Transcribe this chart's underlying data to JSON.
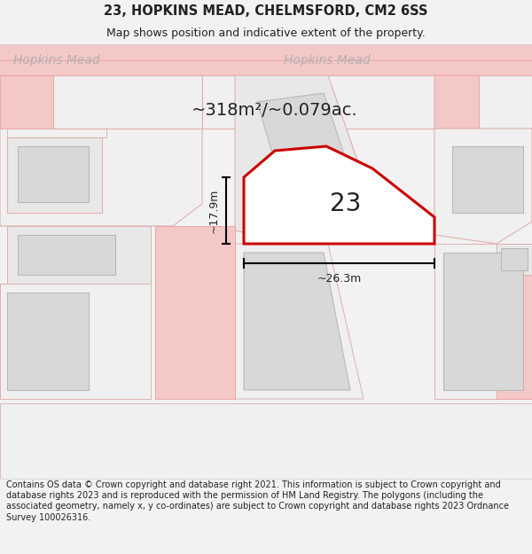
{
  "title_line1": "23, HOPKINS MEAD, CHELMSFORD, CM2 6SS",
  "title_line2": "Map shows position and indicative extent of the property.",
  "footer_text": "Contains OS data © Crown copyright and database right 2021. This information is subject to Crown copyright and database rights 2023 and is reproduced with the permission of HM Land Registry. The polygons (including the associated geometry, namely x, y co-ordinates) are subject to Crown copyright and database rights 2023 Ordnance Survey 100026316.",
  "area_text": "~318m²/~0.079ac.",
  "number_label": "23",
  "dim_width": "~26.3m",
  "dim_height": "~17.9m",
  "street_label_left": "Hopkins Mead",
  "street_label_right": "Hopkins Mead",
  "bg_color": "#f2f2f2",
  "map_bg": "#ffffff",
  "road_color": "#f5c8c8",
  "road_line_color": "#e8a0a0",
  "plot_line_color": "#e0b0b0",
  "building_fill": "#d8d8d8",
  "building_outline": "#b8b8b8",
  "highlight_color": "#cc0000",
  "text_color": "#222222",
  "street_text_color": "#b0b0b0",
  "title_fontsize": 10.5,
  "subtitle_fontsize": 9,
  "footer_fontsize": 7.0,
  "street_fontsize": 10,
  "area_fontsize": 14,
  "number_fontsize": 20,
  "dim_fontsize": 9
}
